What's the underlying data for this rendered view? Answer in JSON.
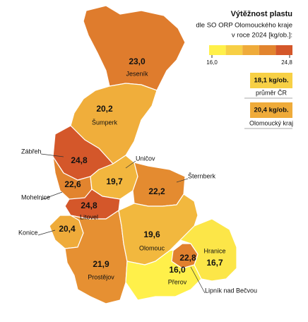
{
  "title": "Výtěžnost plastu",
  "subtitle_lines": [
    "dle SO ORP Olomouckého kraje",
    "v roce 2024 [kg/ob.]:"
  ],
  "legend": {
    "colors": [
      "#fff04a",
      "#f7cf45",
      "#efab3a",
      "#e2842e",
      "#d4572a"
    ],
    "min": {
      "value": 16.0,
      "label": "16,0"
    },
    "max": {
      "value": 24.8,
      "label": "24,8"
    }
  },
  "references": [
    {
      "value": 18.1,
      "label": "18,1 kg/ob.",
      "caption": "průměr ČR"
    },
    {
      "value": 20.4,
      "label": "20,4 kg/ob.",
      "caption": "Olomoucký kraj"
    }
  ],
  "regions": [
    {
      "name": "Jeseník",
      "value": 23.0,
      "value_label": "23,0"
    },
    {
      "name": "Šumperk",
      "value": 20.2,
      "value_label": "20,2"
    },
    {
      "name": "Zábřeh",
      "value": 24.8,
      "value_label": "24,8"
    },
    {
      "name": "Mohelnice",
      "value": 22.6,
      "value_label": "22,6"
    },
    {
      "name": "Uničov",
      "value": 19.7,
      "value_label": "19,7"
    },
    {
      "name": "Litovel",
      "value": 24.8,
      "value_label": "24,8"
    },
    {
      "name": "Šternberk",
      "value": 22.2,
      "value_label": "22,2"
    },
    {
      "name": "Konice",
      "value": 20.4,
      "value_label": "20,4"
    },
    {
      "name": "Prostějov",
      "value": 21.9,
      "value_label": "21,9"
    },
    {
      "name": "Olomouc",
      "value": 19.6,
      "value_label": "19,6"
    },
    {
      "name": "Přerov",
      "value": 16.0,
      "value_label": "16,0"
    },
    {
      "name": "Hranice",
      "value": 16.7,
      "value_label": "16,7"
    },
    {
      "name": "Lipník nad Bečvou",
      "value": 22.8,
      "value_label": "22,8"
    }
  ]
}
